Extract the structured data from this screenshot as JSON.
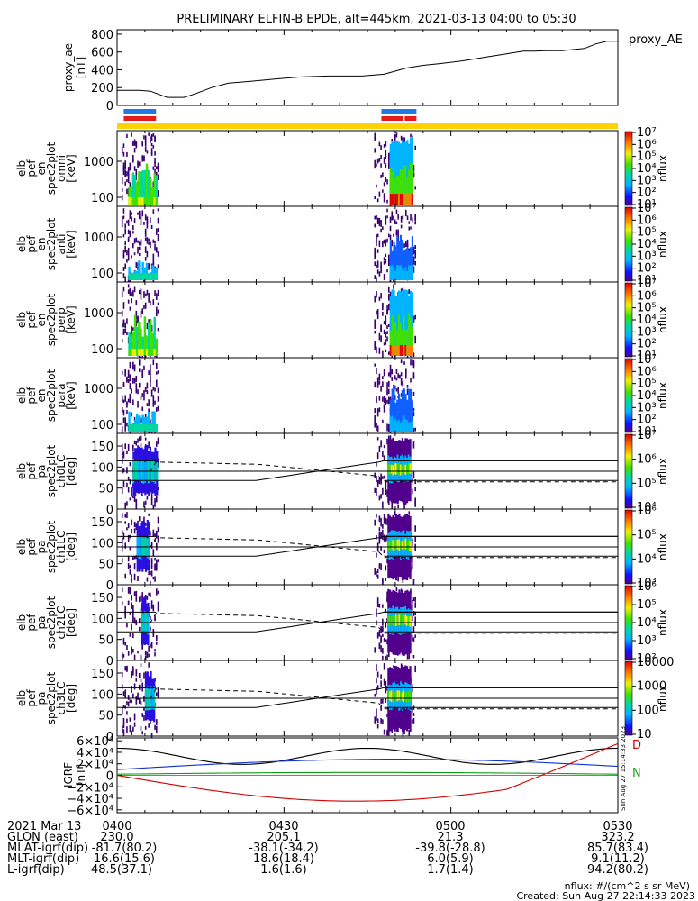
{
  "title": "PRELIMINARY ELFIN-B EPDE, alt=445km, 2021-03-13 04:00 to 05:30",
  "colors": {
    "bar_blue": "#1e78e6",
    "bar_red": "#e61a1a",
    "bar_yellow": "#ffd200",
    "bx": "#d00000",
    "by": "#1030d0",
    "bz": "#10a010",
    "bmag": "#000000"
  },
  "chart_data": [
    {
      "type": "line",
      "panel": "proxy_ae",
      "ylabel": [
        "proxy_ae",
        "[nT]"
      ],
      "legend": "proxy_AE",
      "ylim": [
        0,
        850
      ],
      "yticks": [
        "0",
        "200",
        "400",
        "600",
        "800"
      ],
      "x_minutes": [
        0,
        4,
        6,
        9,
        12,
        14,
        17,
        20,
        24,
        29,
        33,
        38,
        44,
        48,
        52,
        55,
        58,
        62,
        66,
        70,
        73,
        75,
        77,
        80,
        84,
        86,
        88,
        90
      ],
      "values": [
        170,
        170,
        160,
        90,
        90,
        130,
        200,
        250,
        270,
        300,
        320,
        330,
        330,
        350,
        420,
        450,
        470,
        500,
        540,
        580,
        610,
        610,
        615,
        615,
        640,
        690,
        720,
        720
      ]
    },
    {
      "type": "heatmap",
      "panel": "en_omni",
      "ylabel": [
        "elb",
        "pef",
        "en",
        "spec2plot",
        "omni",
        "[keV]"
      ],
      "yticks": [
        "100",
        "1000"
      ],
      "colorbar": {
        "label": "nflux",
        "ticks": [
          "10¹",
          "10²",
          "10³",
          "10⁴",
          "10⁵",
          "10⁶",
          "10⁷"
        ]
      }
    },
    {
      "type": "heatmap",
      "panel": "en_anti",
      "ylabel": [
        "elb",
        "pef",
        "en",
        "spec2plot",
        "anti",
        "[keV]"
      ],
      "yticks": [
        "100",
        "1000"
      ],
      "colorbar": {
        "label": "nflux",
        "ticks": [
          "10¹",
          "10²",
          "10³",
          "10⁴",
          "10⁵",
          "10⁶",
          "10⁷"
        ]
      }
    },
    {
      "type": "heatmap",
      "panel": "en_perp",
      "ylabel": [
        "elb",
        "pef",
        "en",
        "spec2plot",
        "perp",
        "[keV]"
      ],
      "yticks": [
        "100",
        "1000"
      ],
      "colorbar": {
        "label": "nflux",
        "ticks": [
          "10¹",
          "10²",
          "10³",
          "10⁴",
          "10⁵",
          "10⁶",
          "10⁷"
        ]
      }
    },
    {
      "type": "heatmap",
      "panel": "en_para",
      "ylabel": [
        "elb",
        "pef",
        "en",
        "spec2plot",
        "para",
        "[keV]"
      ],
      "yticks": [
        "100",
        "1000"
      ],
      "colorbar": {
        "label": "nflux",
        "ticks": [
          "10¹",
          "10²",
          "10³",
          "10⁴",
          "10⁵",
          "10⁶",
          "10⁷"
        ]
      }
    },
    {
      "type": "heatmap",
      "panel": "pa_ch0",
      "ylabel": [
        "elb",
        "pef",
        "pa",
        "spec2plot",
        "ch0LC",
        "[deg]"
      ],
      "yticks": [
        "0",
        "50",
        "100",
        "150"
      ],
      "colorbar": {
        "label": "nflux",
        "ticks": [
          "10⁴",
          "10⁵",
          "10⁶",
          "10⁷"
        ]
      }
    },
    {
      "type": "heatmap",
      "panel": "pa_ch1",
      "ylabel": [
        "elb",
        "pef",
        "pa",
        "spec2plot",
        "ch1LC",
        "[deg]"
      ],
      "yticks": [
        "0",
        "50",
        "100",
        "150"
      ],
      "colorbar": {
        "label": "nflux",
        "ticks": [
          "10³",
          "10⁴",
          "10⁵",
          "10⁶"
        ]
      }
    },
    {
      "type": "heatmap",
      "panel": "pa_ch2",
      "ylabel": [
        "elb",
        "pef",
        "pa",
        "spec2plot",
        "ch2LC",
        "[deg]"
      ],
      "yticks": [
        "0",
        "50",
        "100",
        "150"
      ],
      "colorbar": {
        "label": "nflux",
        "ticks": [
          "10²",
          "10³",
          "10⁴",
          "10⁵",
          "10⁶"
        ]
      }
    },
    {
      "type": "heatmap",
      "panel": "pa_ch3",
      "ylabel": [
        "elb",
        "pef",
        "pa",
        "spec2plot",
        "ch3LC",
        "[deg]"
      ],
      "yticks": [
        "0",
        "50",
        "100",
        "150"
      ],
      "colorbar": {
        "label": "nflux",
        "ticks": [
          "10",
          "100",
          "1000",
          "10000"
        ]
      }
    },
    {
      "type": "line",
      "panel": "igrf",
      "ylabel": [
        "IGRF",
        "[nT]"
      ],
      "ylim": [
        -65000,
        65000
      ],
      "yticks": [
        "6×10⁴",
        "4×10⁴",
        "2×10⁴",
        "0",
        "−2×10⁴",
        "−4×10⁴",
        "−6×10⁴"
      ],
      "legend": [
        "D",
        "N"
      ],
      "side_note": "Sun Aug 27 15:14:33 2023"
    }
  ],
  "footer": {
    "rows": [
      {
        "label": "2021 Mar 13",
        "values": [
          "0400",
          "0430",
          "0500",
          "0530"
        ]
      },
      {
        "label": "GLON (east)",
        "values": [
          "230.0",
          "205.1",
          "21.3",
          "323.2"
        ]
      },
      {
        "label": "MLAT-igrf(dip)",
        "values": [
          "-81.7(80.2)",
          "-38.1(-34.2)",
          "-39.8(-28.8)",
          "85.7(83.4)"
        ]
      },
      {
        "label": "MLT-igrf(dip)",
        "values": [
          "16.6(15.6)",
          "18.6(18.4)",
          "6.0(5.9)",
          "9.1(11.2)"
        ]
      },
      {
        "label": "L-igrf(dip)",
        "values": [
          "48.5(37.1)",
          "1.6(1.6)",
          "1.7(1.4)",
          "94.2(80.2)"
        ]
      }
    ],
    "nflux_units": "nflux: #/(cm^2 s sr MeV)",
    "created": "Created: Sun Aug 27 22:14:33 2023"
  }
}
